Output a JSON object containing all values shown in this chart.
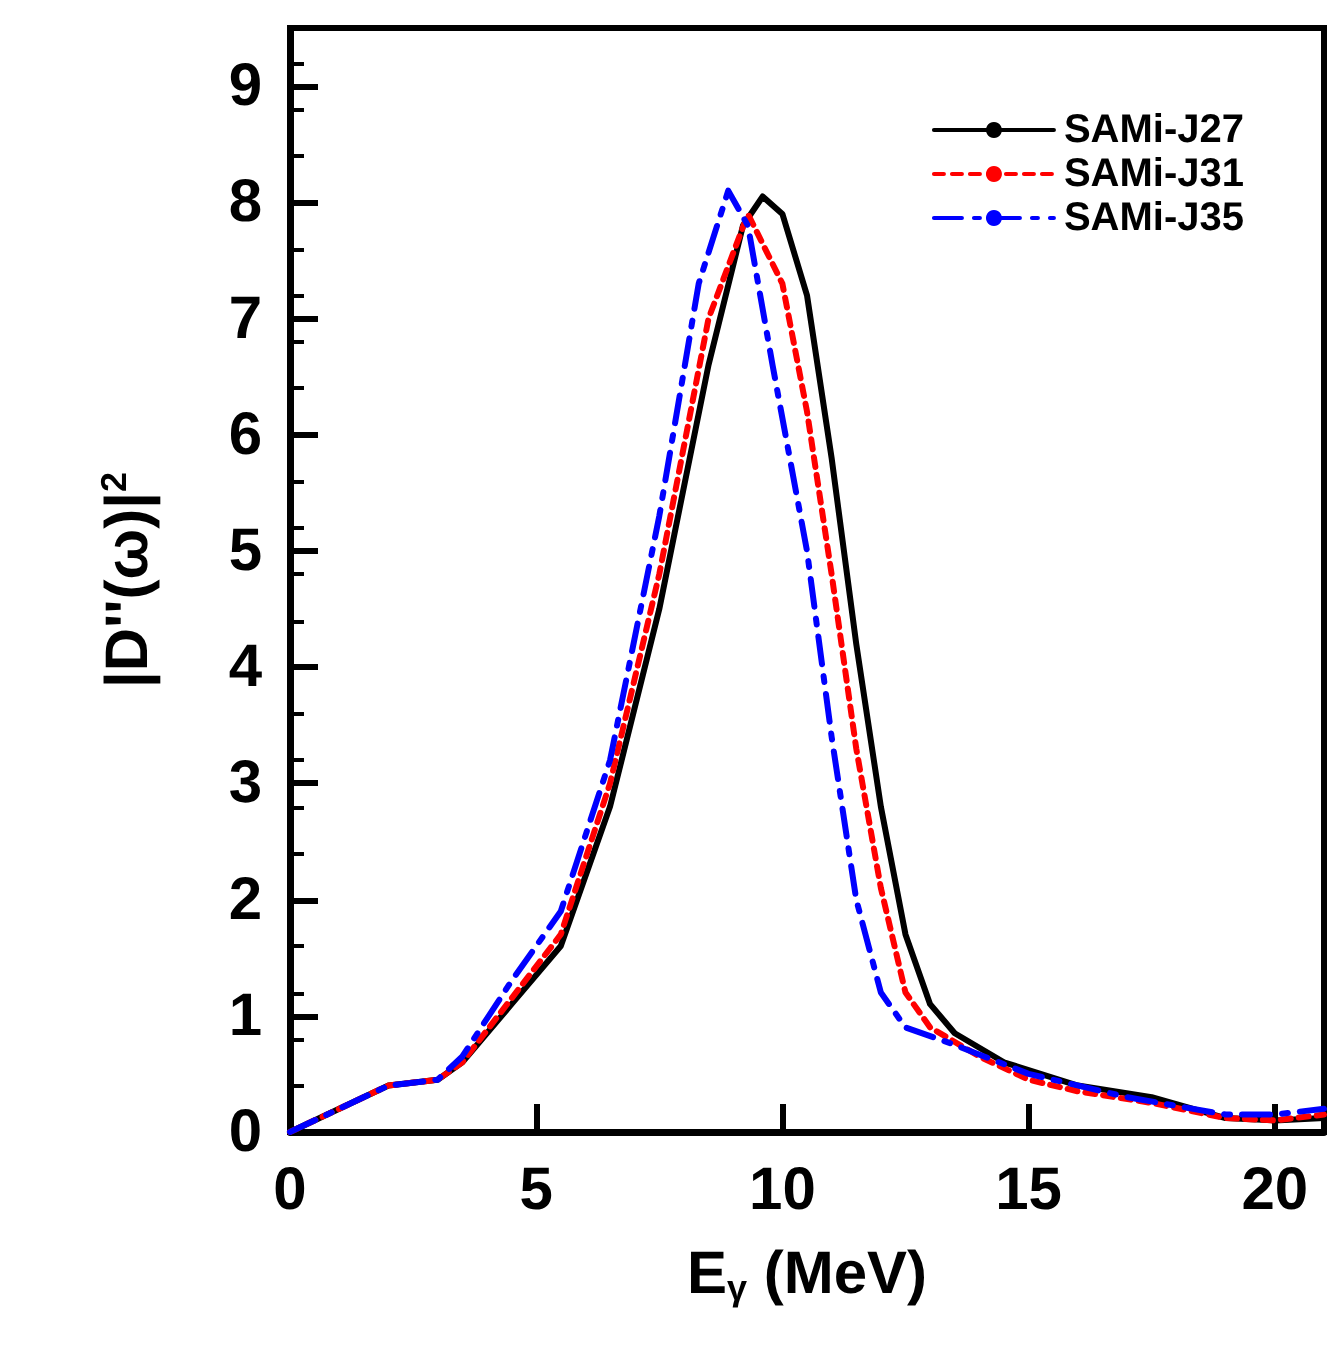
{
  "chart_data": {
    "type": "line",
    "xlabel": "E$_{γ}$ (MeV)",
    "ylabel": "|D''(ω)|$^{2}$",
    "xlim": [
      0,
      21
    ],
    "xticks": [
      0,
      5,
      10,
      15,
      20
    ],
    "ylim": [
      0,
      9.5
    ],
    "yticks": [
      0,
      1,
      2,
      3,
      4,
      5,
      6,
      7,
      8,
      9
    ],
    "grid": false,
    "legend": "top right",
    "marker": "none",
    "series": [
      {
        "name": "SAMi-J27",
        "color": "#000000",
        "line_style": "solid",
        "x": [
          0,
          1,
          2,
          3,
          3.5,
          4.5,
          5.5,
          6.5,
          7.5,
          8.5,
          9.2,
          9.6,
          10,
          10.5,
          11,
          11.5,
          12,
          12.5,
          13,
          13.5,
          14.5,
          16,
          17.5,
          19,
          20,
          21
        ],
        "values": [
          0,
          0.2,
          0.4,
          0.45,
          0.6,
          1.1,
          1.6,
          2.8,
          4.5,
          6.6,
          7.8,
          8.05,
          7.9,
          7.2,
          5.8,
          4.2,
          2.8,
          1.7,
          1.1,
          0.85,
          0.6,
          0.4,
          0.3,
          0.12,
          0.1,
          0.12
        ]
      },
      {
        "name": "SAMi-J31",
        "color": "#ff0000",
        "line_style": "dotted",
        "x": [
          0,
          1,
          2,
          3,
          3.5,
          4.5,
          5.5,
          6.5,
          7.5,
          8.5,
          9.3,
          10,
          10.5,
          11,
          11.5,
          12,
          12.5,
          13,
          14,
          15,
          16,
          17.5,
          19,
          20,
          21
        ],
        "values": [
          0,
          0.2,
          0.4,
          0.45,
          0.6,
          1.15,
          1.7,
          3.0,
          4.8,
          7.0,
          7.9,
          7.3,
          6.2,
          4.8,
          3.3,
          2.1,
          1.2,
          0.9,
          0.65,
          0.45,
          0.35,
          0.25,
          0.12,
          0.1,
          0.15
        ]
      },
      {
        "name": "SAMi-J35",
        "color": "#0000ff",
        "line_style": "dashed",
        "x": [
          0,
          1,
          2,
          3,
          3.5,
          4.5,
          5.5,
          6.5,
          7.5,
          8.3,
          8.9,
          9.3,
          9.8,
          10.5,
          11,
          11.5,
          12,
          12.5,
          13.5,
          15,
          17,
          19,
          20,
          21
        ],
        "values": [
          0,
          0.2,
          0.4,
          0.45,
          0.65,
          1.3,
          1.9,
          3.2,
          5.3,
          7.3,
          8.1,
          7.8,
          6.6,
          5.0,
          3.4,
          2.0,
          1.2,
          0.9,
          0.75,
          0.5,
          0.3,
          0.15,
          0.15,
          0.2
        ]
      }
    ]
  }
}
